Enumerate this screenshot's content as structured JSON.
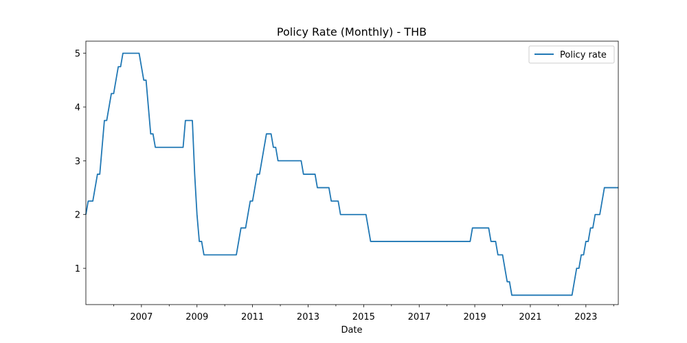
{
  "chart_data": {
    "type": "line",
    "title": "Policy Rate (Monthly) - THB",
    "xlabel": "Date",
    "ylabel": "",
    "x_range": [
      "2005-01",
      "2024-03"
    ],
    "ylim": [
      0.325,
      5.225
    ],
    "yticks": [
      1,
      2,
      3,
      4,
      5
    ],
    "xticks": [
      "2007",
      "2009",
      "2011",
      "2013",
      "2015",
      "2017",
      "2019",
      "2021",
      "2023"
    ],
    "grid": false,
    "legend_position": "top-right",
    "series": [
      {
        "name": "Policy rate",
        "color": "#1f77b4",
        "points": [
          [
            "2005-01",
            2.0
          ],
          [
            "2005-02",
            2.25
          ],
          [
            "2005-04",
            2.25
          ],
          [
            "2005-05",
            2.5
          ],
          [
            "2005-06",
            2.75
          ],
          [
            "2005-07",
            2.75
          ],
          [
            "2005-08",
            3.25
          ],
          [
            "2005-09",
            3.75
          ],
          [
            "2005-10",
            3.75
          ],
          [
            "2005-12",
            4.25
          ],
          [
            "2006-01",
            4.25
          ],
          [
            "2006-03",
            4.75
          ],
          [
            "2006-04",
            4.75
          ],
          [
            "2006-05",
            5.0
          ],
          [
            "2006-12",
            5.0
          ],
          [
            "2007-01",
            4.75
          ],
          [
            "2007-02",
            4.5
          ],
          [
            "2007-03",
            4.5
          ],
          [
            "2007-04",
            4.0
          ],
          [
            "2007-05",
            3.5
          ],
          [
            "2007-06",
            3.5
          ],
          [
            "2007-07",
            3.25
          ],
          [
            "2008-07",
            3.25
          ],
          [
            "2008-08",
            3.75
          ],
          [
            "2008-11",
            3.75
          ],
          [
            "2008-12",
            2.75
          ],
          [
            "2009-01",
            2.0
          ],
          [
            "2009-02",
            1.5
          ],
          [
            "2009-03",
            1.5
          ],
          [
            "2009-04",
            1.25
          ],
          [
            "2010-06",
            1.25
          ],
          [
            "2010-07",
            1.5
          ],
          [
            "2010-08",
            1.75
          ],
          [
            "2010-10",
            1.75
          ],
          [
            "2010-12",
            2.25
          ],
          [
            "2011-01",
            2.25
          ],
          [
            "2011-03",
            2.75
          ],
          [
            "2011-04",
            2.75
          ],
          [
            "2011-06",
            3.25
          ],
          [
            "2011-07",
            3.5
          ],
          [
            "2011-09",
            3.5
          ],
          [
            "2011-10",
            3.25
          ],
          [
            "2011-11",
            3.25
          ],
          [
            "2011-12",
            3.0
          ],
          [
            "2012-10",
            3.0
          ],
          [
            "2012-11",
            2.75
          ],
          [
            "2013-04",
            2.75
          ],
          [
            "2013-05",
            2.5
          ],
          [
            "2013-10",
            2.5
          ],
          [
            "2013-11",
            2.25
          ],
          [
            "2014-02",
            2.25
          ],
          [
            "2014-03",
            2.0
          ],
          [
            "2015-02",
            2.0
          ],
          [
            "2015-03",
            1.75
          ],
          [
            "2015-04",
            1.5
          ],
          [
            "2018-11",
            1.5
          ],
          [
            "2018-12",
            1.75
          ],
          [
            "2019-07",
            1.75
          ],
          [
            "2019-08",
            1.5
          ],
          [
            "2019-10",
            1.5
          ],
          [
            "2019-11",
            1.25
          ],
          [
            "2020-01",
            1.25
          ],
          [
            "2020-02",
            1.0
          ],
          [
            "2020-03",
            0.75
          ],
          [
            "2020-04",
            0.75
          ],
          [
            "2020-05",
            0.5
          ],
          [
            "2022-07",
            0.5
          ],
          [
            "2022-08",
            0.75
          ],
          [
            "2022-09",
            1.0
          ],
          [
            "2022-10",
            1.0
          ],
          [
            "2022-11",
            1.25
          ],
          [
            "2022-12",
            1.25
          ],
          [
            "2023-01",
            1.5
          ],
          [
            "2023-02",
            1.5
          ],
          [
            "2023-03",
            1.75
          ],
          [
            "2023-04",
            1.75
          ],
          [
            "2023-05",
            2.0
          ],
          [
            "2023-07",
            2.0
          ],
          [
            "2023-08",
            2.25
          ],
          [
            "2023-09",
            2.5
          ],
          [
            "2024-03",
            2.5
          ]
        ]
      }
    ]
  }
}
